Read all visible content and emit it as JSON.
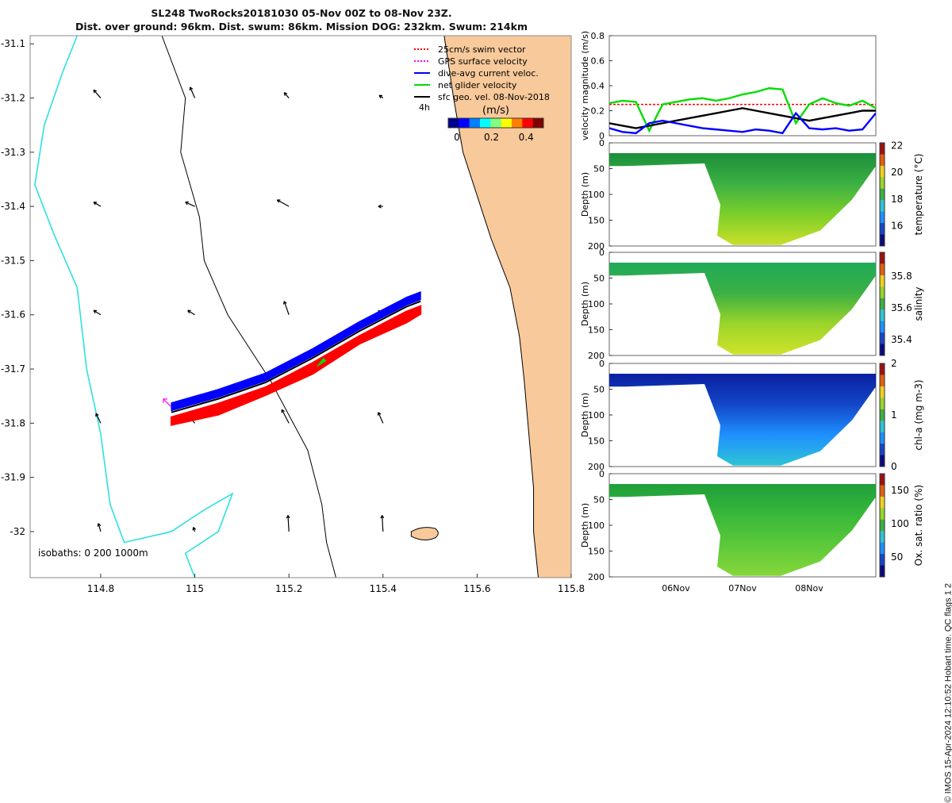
{
  "header": {
    "title_line1": "SL248 TwoRocks20181030 05-Nov 00Z to 08-Nov 23Z.",
    "title_line2": "Dist. over ground: 96km. Dist. swum: 86km. Mission DOG: 232km. Swum: 214km"
  },
  "side_note": "© IMOS 15-Apr-2024 12:10:52 Hobart time. QC flags 1  2",
  "colors": {
    "land": "#f8c99a",
    "coast": "#000000",
    "isobath_deep": "#2ee0e0",
    "swim": "#ff0000",
    "gps": "#ff00ff",
    "dac": "#0000ff",
    "net": "#00dd00",
    "geo": "#000000"
  },
  "chart_data": [
    {
      "type": "map",
      "x": {
        "ticks": [
          114.8,
          115,
          115.2,
          115.4,
          115.6,
          115.8
        ],
        "tick_labels": [
          "114.8",
          "115",
          "115.2",
          "115.4",
          "115.6",
          "115.8"
        ],
        "lim": [
          114.65,
          115.8
        ]
      },
      "y": {
        "ticks": [
          -31.1,
          -31.2,
          -31.3,
          -31.4,
          -31.5,
          -31.6,
          -31.7,
          -31.8,
          -31.9,
          -32
        ],
        "tick_labels": [
          "-31.1",
          "-31.2",
          "-31.3",
          "-31.4",
          "-31.5",
          "-31.6",
          "-31.7",
          "-31.8",
          "-31.9",
          "-32"
        ],
        "lim": [
          -32.085,
          -31.085
        ]
      },
      "legend": [
        {
          "label": "25cm/s swim vector",
          "color": "#ff0000",
          "style": "dotted"
        },
        {
          "label": "GPS surface velocity",
          "color": "#ff00ff",
          "style": "dotted"
        },
        {
          "label": "dive-avg current veloc.",
          "color": "#0000ff",
          "style": "solid"
        },
        {
          "label": "net glider velocity",
          "color": "#00dd00",
          "style": "solid"
        },
        {
          "label": "sfc geo. vel. 08-Nov-2018",
          "color": "#000000",
          "style": "solid"
        }
      ],
      "legend_position": "top-right",
      "time_marker": "4h",
      "colorbar": {
        "label": "(m/s)",
        "ticks": [
          0,
          0.2,
          0.4
        ],
        "tick_labels": [
          "0",
          "0.2",
          "0.4"
        ],
        "lim": [
          -0.05,
          0.5
        ],
        "colormap": "jet"
      },
      "isobaths_label": "isobaths: 0   200  1000m",
      "track": [
        [
          114.95,
          -31.78
        ],
        [
          115.05,
          -31.755
        ],
        [
          115.15,
          -31.725
        ],
        [
          115.25,
          -31.68
        ],
        [
          115.35,
          -31.63
        ],
        [
          115.45,
          -31.585
        ],
        [
          115.48,
          -31.575
        ]
      ],
      "geo_vectors": [
        {
          "lon": 114.8,
          "lat": -31.2,
          "dlon": -0.015,
          "dlat": 0.015
        },
        {
          "lon": 115.0,
          "lat": -31.2,
          "dlon": -0.01,
          "dlat": 0.02
        },
        {
          "lon": 115.2,
          "lat": -31.2,
          "dlon": -0.01,
          "dlat": 0.01
        },
        {
          "lon": 115.4,
          "lat": -31.2,
          "dlon": -0.008,
          "dlat": 0.005
        },
        {
          "lon": 114.8,
          "lat": -31.4,
          "dlon": -0.015,
          "dlat": 0.008
        },
        {
          "lon": 115.0,
          "lat": -31.4,
          "dlon": -0.02,
          "dlat": 0.008
        },
        {
          "lon": 115.2,
          "lat": -31.4,
          "dlon": -0.025,
          "dlat": 0.012
        },
        {
          "lon": 115.4,
          "lat": -31.4,
          "dlon": -0.01,
          "dlat": 0.0
        },
        {
          "lon": 114.8,
          "lat": -31.6,
          "dlon": -0.015,
          "dlat": 0.008
        },
        {
          "lon": 115.0,
          "lat": -31.6,
          "dlon": -0.015,
          "dlat": 0.008
        },
        {
          "lon": 115.2,
          "lat": -31.6,
          "dlon": -0.01,
          "dlat": 0.025
        },
        {
          "lon": 115.4,
          "lat": -31.6,
          "dlon": -0.01,
          "dlat": 0.008
        },
        {
          "lon": 114.8,
          "lat": -31.8,
          "dlon": -0.01,
          "dlat": 0.018
        },
        {
          "lon": 115.0,
          "lat": -31.8,
          "dlon": -0.01,
          "dlat": 0.01
        },
        {
          "lon": 115.2,
          "lat": -31.8,
          "dlon": -0.015,
          "dlat": 0.025
        },
        {
          "lon": 115.4,
          "lat": -31.8,
          "dlon": -0.01,
          "dlat": 0.02
        },
        {
          "lon": 114.8,
          "lat": -32.0,
          "dlon": -0.005,
          "dlat": 0.015
        },
        {
          "lon": 115.0,
          "lat": -32.0,
          "dlon": -0.003,
          "dlat": 0.008
        },
        {
          "lon": 115.2,
          "lat": -32.0,
          "dlon": -0.002,
          "dlat": 0.03
        },
        {
          "lon": 115.4,
          "lat": -32.0,
          "dlon": -0.002,
          "dlat": 0.03
        }
      ]
    },
    {
      "type": "line",
      "ylabel": "velocity magnitude (m/s)",
      "ylim": [
        0,
        0.8
      ],
      "yticks": [
        0,
        0.2,
        0.4,
        0.6,
        0.8
      ],
      "ytick_labels": [
        "0",
        "0.2",
        "0.4",
        "0.6",
        "0.8"
      ],
      "x_days": [
        0,
        0.2,
        0.4,
        0.6,
        0.8,
        1.0,
        1.2,
        1.4,
        1.6,
        1.8,
        2.0,
        2.2,
        2.4,
        2.6,
        2.8,
        3.0,
        3.2,
        3.4,
        3.6,
        3.8,
        4.0
      ],
      "series": [
        {
          "color": "#ff0000",
          "values": [
            0.25,
            0.25,
            0.25,
            0.25,
            0.25,
            0.25,
            0.25,
            0.25,
            0.25,
            0.25,
            0.25,
            0.25,
            0.25,
            0.25,
            0.25,
            0.25,
            0.25,
            0.25,
            0.25,
            0.25,
            0.25
          ]
        },
        {
          "color": "#00dd00",
          "values": [
            0.26,
            0.28,
            0.27,
            0.04,
            0.25,
            0.27,
            0.29,
            0.3,
            0.28,
            0.3,
            0.33,
            0.35,
            0.38,
            0.37,
            0.1,
            0.25,
            0.3,
            0.26,
            0.24,
            0.28,
            0.22
          ]
        },
        {
          "color": "#000000",
          "values": [
            0.1,
            0.08,
            0.06,
            0.08,
            0.1,
            0.12,
            0.14,
            0.16,
            0.18,
            0.2,
            0.22,
            0.2,
            0.18,
            0.16,
            0.14,
            0.12,
            0.14,
            0.16,
            0.18,
            0.2,
            0.2
          ]
        },
        {
          "color": "#0000ff",
          "values": [
            0.06,
            0.03,
            0.02,
            0.1,
            0.12,
            0.1,
            0.08,
            0.06,
            0.05,
            0.04,
            0.03,
            0.05,
            0.04,
            0.02,
            0.18,
            0.06,
            0.05,
            0.06,
            0.04,
            0.05,
            0.18
          ]
        }
      ]
    },
    {
      "type": "heatmap",
      "ylabel": "Depth (m)",
      "ylim": [
        200,
        0
      ],
      "yticks": [
        0,
        50,
        100,
        150,
        200
      ],
      "ytick_labels": [
        "0",
        "50",
        "100",
        "150",
        "200"
      ],
      "colorbar_label": "temperature (°C)",
      "clim": [
        14.5,
        22.2
      ],
      "cticks": [
        16,
        18,
        20,
        22
      ],
      "ctick_labels": [
        "16",
        "18",
        "20",
        "22"
      ],
      "palette": [
        "#1a8f3a",
        "#3cb043",
        "#7ccf2a",
        "#c9df2a"
      ],
      "dominant_value": 18.5
    },
    {
      "type": "heatmap",
      "ylabel": "Depth (m)",
      "ylim": [
        200,
        0
      ],
      "yticks": [
        0,
        50,
        100,
        150,
        200
      ],
      "ytick_labels": [
        "0",
        "50",
        "100",
        "150",
        "200"
      ],
      "colorbar_label": "salinity",
      "clim": [
        35.3,
        35.95
      ],
      "cticks": [
        35.4,
        35.6,
        35.8
      ],
      "ctick_labels": [
        "35.4",
        "35.6",
        "35.8"
      ],
      "palette": [
        "#1faa5a",
        "#3cb043",
        "#9bd52a",
        "#cfe22a"
      ],
      "dominant_value": 35.7
    },
    {
      "type": "heatmap",
      "ylabel": "Depth (m)",
      "ylim": [
        200,
        0
      ],
      "yticks": [
        0,
        50,
        100,
        150,
        200
      ],
      "ytick_labels": [
        "0",
        "50",
        "100",
        "150",
        "200"
      ],
      "colorbar_label": "chl-a (mg m-3)",
      "clim": [
        0,
        2
      ],
      "cticks": [
        0,
        1,
        2
      ],
      "ctick_labels": [
        "0",
        "1",
        "2"
      ],
      "palette": [
        "#0a1fa0",
        "#1446c8",
        "#1e90ff",
        "#2fc4d6"
      ],
      "dominant_value": 0.4
    },
    {
      "type": "heatmap",
      "ylabel": "Depth (m)",
      "ylim": [
        200,
        0
      ],
      "yticks": [
        0,
        50,
        100,
        150,
        200
      ],
      "ytick_labels": [
        "0",
        "50",
        "100",
        "150",
        "200"
      ],
      "colorbar_label": "Ox. sat. ratio (%)",
      "clim": [
        20,
        175
      ],
      "cticks": [
        50,
        100,
        150
      ],
      "ctick_labels": [
        "50",
        "100",
        "150"
      ],
      "palette": [
        "#1f9f3a",
        "#38b83a",
        "#5cc93a",
        "#86d63a"
      ],
      "dominant_value": 100,
      "xticks": [
        "06Nov",
        "07Nov",
        "08Nov"
      ],
      "xtick_days": [
        1,
        2,
        3
      ]
    }
  ]
}
